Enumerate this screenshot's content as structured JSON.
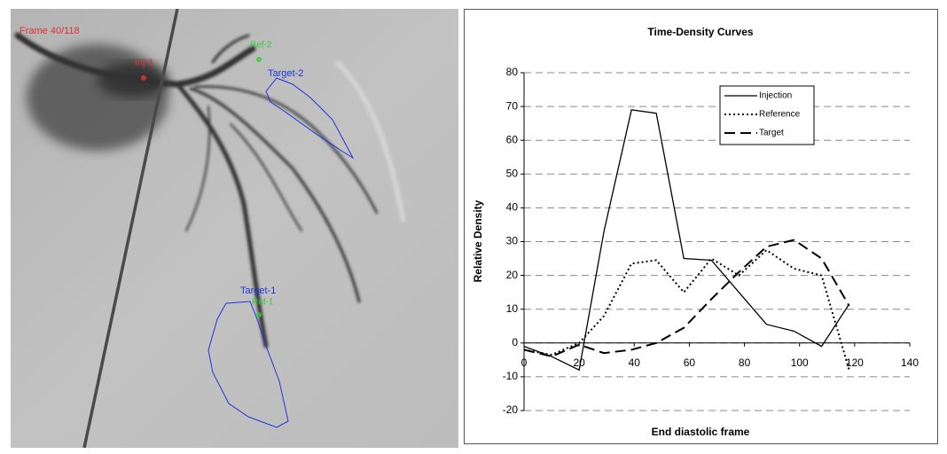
{
  "image_overlay": {
    "frame": "Frame 40/118",
    "labels": [
      "Inj-1",
      "Ref-2",
      "Target-2",
      "Target-1",
      "Ref-1"
    ]
  },
  "chart_data": {
    "type": "line",
    "title": "Time-Density Curves",
    "x_label": "End diastolic frame",
    "y_label": "Relative Density",
    "x": [
      0,
      10,
      20,
      29,
      39,
      48,
      58,
      68,
      78,
      88,
      98,
      108,
      118
    ],
    "series": [
      {
        "name": "Injection",
        "color": "#000000",
        "style": "solid",
        "values": [
          -1,
          -4,
          -8,
          33,
          69,
          68,
          25,
          24.5,
          15,
          5.5,
          3.5,
          -1,
          11.5
        ]
      },
      {
        "name": "Reference",
        "color": "#000000",
        "style": "dotted",
        "values": [
          -2,
          -3.5,
          0,
          8,
          23.5,
          24.5,
          15,
          25,
          20,
          27.5,
          22,
          20,
          -8
        ]
      },
      {
        "name": "Target",
        "color": "#000000",
        "style": "dashed",
        "values": [
          -2,
          -4,
          -0.5,
          -3,
          -2,
          0,
          4.5,
          13,
          21,
          28.5,
          30.5,
          25,
          11
        ]
      }
    ],
    "xlim": [
      0,
      140
    ],
    "xticks": [
      0,
      20,
      40,
      60,
      80,
      100,
      120,
      140
    ],
    "ylim": [
      -20,
      80
    ],
    "yticks": [
      -20,
      -10,
      0,
      10,
      20,
      30,
      40,
      50,
      60,
      70,
      80
    ],
    "grid": true,
    "legend": "top-right"
  }
}
